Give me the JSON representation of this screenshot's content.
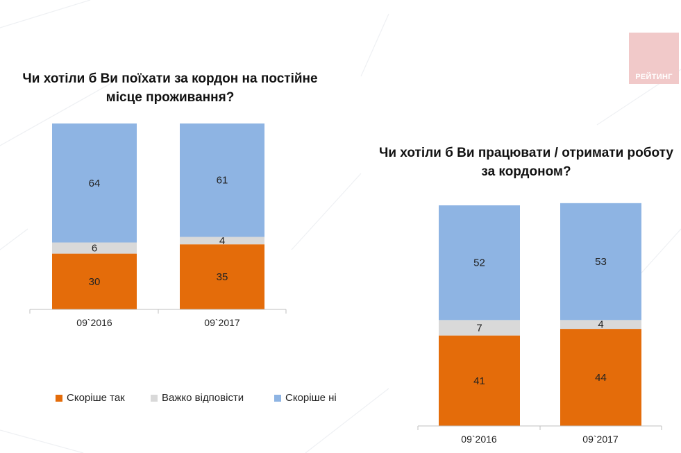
{
  "colors": {
    "yes": "#e46c0a",
    "hard": "#d9d9d9",
    "no": "#8eb4e3",
    "logo_bg": "#f1c9c9",
    "text": "#222222"
  },
  "logo": {
    "text": "РЕЙТИНГ"
  },
  "legend": {
    "items": [
      {
        "label": "Скоріше так",
        "color": "#e46c0a"
      },
      {
        "label": "Важко відповісти",
        "color": "#d9d9d9"
      },
      {
        "label": "Скоріше ні",
        "color": "#8eb4e3"
      }
    ]
  },
  "chart_data": [
    {
      "type": "bar",
      "stacked": true,
      "title": "Чи хотіли б Ви поїхати за кордон на постійне місце проживання?",
      "title_lines": [
        "Чи хотіли б Ви поїхати за кордон на постійне",
        "місце проживання?"
      ],
      "categories": [
        "09`2016",
        "09`2017"
      ],
      "series": [
        {
          "name": "Скоріше так",
          "values": [
            30,
            35
          ]
        },
        {
          "name": "Важко відповісти",
          "values": [
            6,
            4
          ]
        },
        {
          "name": "Скоріше ні",
          "values": [
            64,
            61
          ]
        }
      ],
      "ylim": [
        0,
        100
      ],
      "grid": false,
      "legend": "bottom-left"
    },
    {
      "type": "bar",
      "stacked": true,
      "title": "Чи хотіли б Ви працювати / отримати роботу за кордоном?",
      "title_lines": [
        "Чи хотіли б Ви працювати / отримати роботу",
        "за кордоном?"
      ],
      "categories": [
        "09`2016",
        "09`2017"
      ],
      "series": [
        {
          "name": "Скоріше так",
          "values": [
            41,
            44
          ]
        },
        {
          "name": "Важко відповісти",
          "values": [
            7,
            4
          ]
        },
        {
          "name": "Скоріше ні",
          "values": [
            52,
            53
          ]
        }
      ],
      "ylim": [
        0,
        100
      ],
      "grid": false
    }
  ]
}
